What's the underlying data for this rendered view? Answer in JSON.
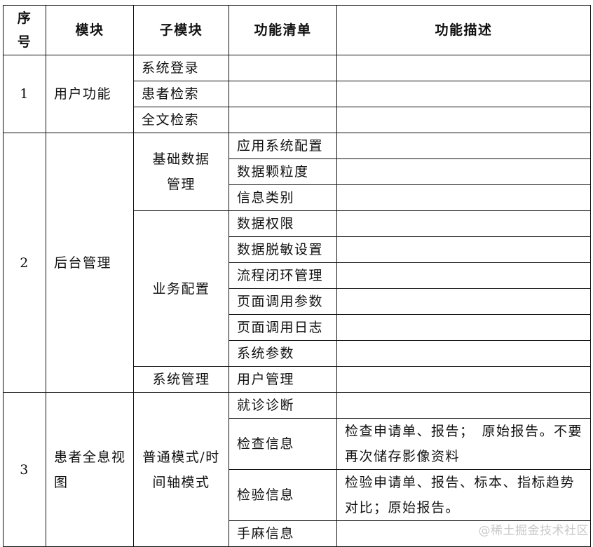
{
  "header": {
    "seq": "序号",
    "module": "模块",
    "submodule": "子模块",
    "features": "功能清单",
    "description": "功能描述"
  },
  "sections": [
    {
      "seq": "1",
      "module": "用户功能",
      "submodules": [
        {
          "name": "系统登录",
          "features": [
            {
              "name": "",
              "desc": ""
            }
          ]
        },
        {
          "name": "患者检索",
          "features": [
            {
              "name": "",
              "desc": ""
            }
          ]
        },
        {
          "name": "全文检索",
          "features": [
            {
              "name": "",
              "desc": ""
            }
          ]
        }
      ]
    },
    {
      "seq": "2",
      "module": "后台管理",
      "submodules": [
        {
          "name": "基础数据管理",
          "features": [
            {
              "name": "应用系统配置",
              "desc": ""
            },
            {
              "name": "数据颗粒度",
              "desc": ""
            },
            {
              "name": "信息类别",
              "desc": ""
            }
          ]
        },
        {
          "name": "业务配置",
          "features": [
            {
              "name": "数据权限",
              "desc": ""
            },
            {
              "name": "数据脱敏设置",
              "desc": ""
            },
            {
              "name": "流程闭环管理",
              "desc": ""
            },
            {
              "name": "页面调用参数",
              "desc": ""
            },
            {
              "name": "页面调用日志",
              "desc": ""
            },
            {
              "name": "系统参数",
              "desc": ""
            }
          ]
        },
        {
          "name": "系统管理",
          "features": [
            {
              "name": "用户管理",
              "desc": ""
            }
          ]
        }
      ]
    },
    {
      "seq": "3",
      "module": "患者全息视图",
      "submodules": [
        {
          "name": "普通模式/时间轴模式",
          "features": [
            {
              "name": "就诊诊断",
              "desc": ""
            },
            {
              "name": "检查信息",
              "desc": "检查申请单、报告；　原始报告。不要再次储存影像资料"
            },
            {
              "name": "检验信息",
              "desc": "检验申请单、报告、标本、指标趋势对比；原始报告。"
            },
            {
              "name": "手麻信息",
              "desc": ""
            }
          ]
        }
      ]
    }
  ],
  "watermark": "@稀土掘金技术社区"
}
